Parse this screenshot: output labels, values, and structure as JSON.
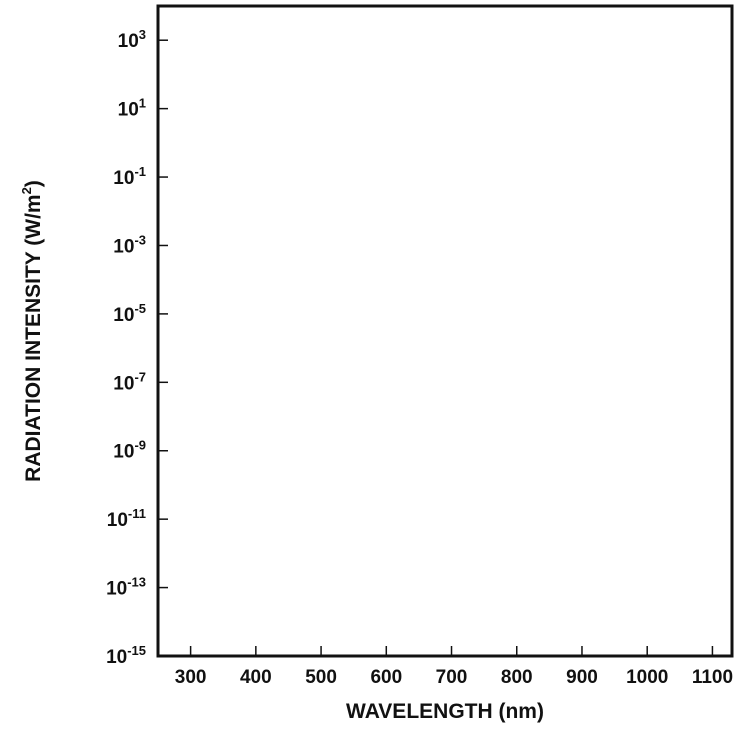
{
  "chart_data": {
    "type": "line",
    "title": "",
    "xlabel": "WAVELENGTH (nm)",
    "ylabel_main": "RADIATION INTENSITY (W/m",
    "ylabel_sup": "2",
    "ylabel_close": ")",
    "xscale": "linear",
    "yscale": "log",
    "xlim": [
      250,
      1130
    ],
    "ylim_exponent": [
      -15,
      4
    ],
    "x_ticks": [
      300,
      400,
      500,
      600,
      700,
      800,
      900,
      1000,
      1100
    ],
    "x_tick_labels": [
      "300",
      "400",
      "500",
      "600",
      "700",
      "800",
      "900",
      "1000",
      "1100"
    ],
    "y_ticks": [
      {
        "base": "10",
        "exp": "3"
      },
      {
        "base": "10",
        "exp": "1"
      },
      {
        "base": "10",
        "exp": "-1"
      },
      {
        "base": "10",
        "exp": "-3"
      },
      {
        "base": "10",
        "exp": "-5"
      },
      {
        "base": "10",
        "exp": "-7"
      },
      {
        "base": "10",
        "exp": "-9"
      },
      {
        "base": "10",
        "exp": "-11"
      },
      {
        "base": "10",
        "exp": "-13"
      },
      {
        "base": "10",
        "exp": "-15"
      }
    ],
    "y_tick_exponents": [
      3,
      1,
      -1,
      -3,
      -5,
      -7,
      -9,
      -11,
      -13,
      -15
    ],
    "series": [],
    "grid": false,
    "legend": "none"
  }
}
